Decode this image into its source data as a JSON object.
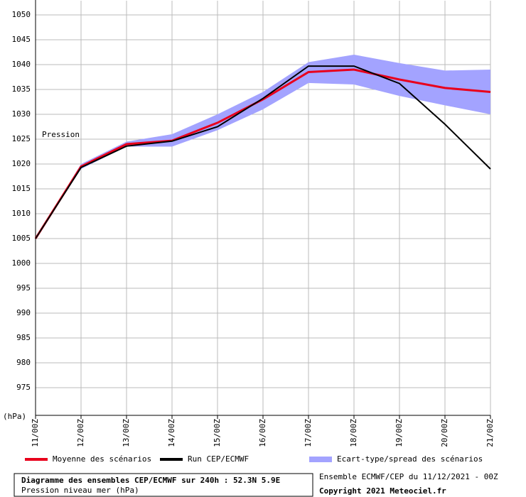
{
  "chart_data": {
    "type": "line",
    "y_label": "Pression",
    "unit_label": "(hPa)",
    "categories": [
      "11/00Z",
      "12/00Z",
      "13/00Z",
      "14/00Z",
      "15/00Z",
      "16/00Z",
      "17/00Z",
      "18/00Z",
      "19/00Z",
      "20/00Z",
      "21/00Z"
    ],
    "ylim": [
      970,
      1050
    ],
    "yticks": [
      975,
      980,
      985,
      990,
      995,
      1000,
      1005,
      1010,
      1015,
      1020,
      1025,
      1030,
      1035,
      1040,
      1045,
      1050
    ],
    "grid": true,
    "band": {
      "name": "Ecart-type/spread des scénarios",
      "color": "#a3a3ff",
      "upper": [
        1005,
        1020,
        1024.5,
        1026,
        1030,
        1034.5,
        1040.5,
        1042,
        1040.3,
        1038.8,
        1039
      ],
      "lower": [
        1005,
        1019,
        1023.5,
        1023.5,
        1026.8,
        1031,
        1036.3,
        1036,
        1033.7,
        1031.8,
        1030
      ]
    },
    "series": [
      {
        "name": "Moyenne des scénarios",
        "color": "#e8001c",
        "values": [
          1005,
          1019.5,
          1024,
          1024.7,
          1028.3,
          1033,
          1038.5,
          1039,
          1037,
          1035.3,
          1034.5
        ]
      },
      {
        "name": "Run CEP/ECMWF",
        "color": "#000000",
        "values": [
          1005,
          1019.3,
          1023.6,
          1024.6,
          1027.5,
          1033.2,
          1039.7,
          1039.7,
          1036.2,
          1028,
          1019
        ]
      }
    ],
    "footer": {
      "title": "Diagramme des ensembles CEP/ECMWF sur 240h : 52.3N 5.9E",
      "subtitle": "Pression niveau mer (hPa)",
      "run": "Ensemble ECMWF/CEP du 11/12/2021 - 00Z",
      "copyright": "Copyright 2021 Meteociel.fr"
    }
  }
}
